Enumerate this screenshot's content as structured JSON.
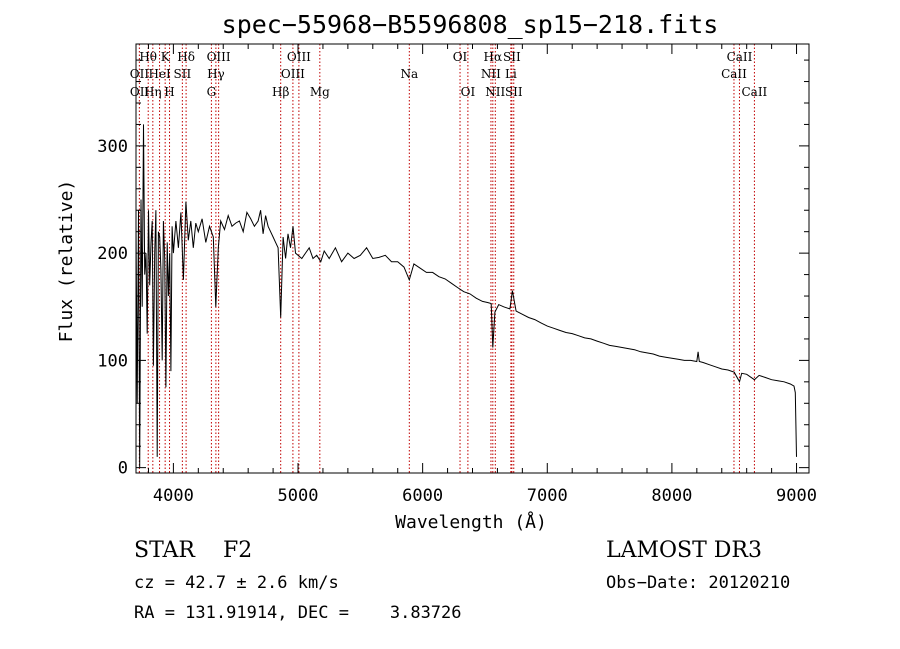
{
  "chart_data": {
    "type": "line",
    "title": "spec−55968−B5596808_sp15−218.fits",
    "xlabel": "Wavelength (Å)",
    "ylabel": "Flux (relative)",
    "xlim": [
      3700,
      9100
    ],
    "ylim": [
      -5,
      395
    ],
    "xticks": [
      4000,
      5000,
      6000,
      7000,
      8000,
      9000
    ],
    "yticks": [
      0,
      100,
      200,
      300
    ],
    "series": [
      {
        "name": "spectrum",
        "x": [
          3700,
          3710,
          3720,
          3730,
          3740,
          3750,
          3760,
          3770,
          3780,
          3790,
          3800,
          3810,
          3820,
          3830,
          3840,
          3850,
          3860,
          3870,
          3880,
          3890,
          3900,
          3910,
          3920,
          3930,
          3940,
          3950,
          3960,
          3970,
          3980,
          3990,
          4000,
          4020,
          4040,
          4060,
          4080,
          4100,
          4120,
          4140,
          4160,
          4180,
          4200,
          4230,
          4260,
          4290,
          4320,
          4340,
          4360,
          4380,
          4410,
          4440,
          4470,
          4500,
          4530,
          4560,
          4590,
          4620,
          4650,
          4680,
          4700,
          4720,
          4740,
          4760,
          4780,
          4800,
          4820,
          4840,
          4861,
          4880,
          4900,
          4920,
          4940,
          4960,
          4980,
          5000,
          5030,
          5060,
          5090,
          5120,
          5150,
          5183,
          5210,
          5250,
          5300,
          5350,
          5400,
          5450,
          5500,
          5550,
          5600,
          5650,
          5700,
          5750,
          5800,
          5850,
          5893,
          5930,
          5980,
          6030,
          6080,
          6130,
          6180,
          6230,
          6280,
          6330,
          6380,
          6430,
          6480,
          6520,
          6550,
          6563,
          6580,
          6610,
          6650,
          6700,
          6720,
          6750,
          6800,
          6850,
          6900,
          6950,
          7000,
          7050,
          7100,
          7150,
          7200,
          7250,
          7300,
          7350,
          7400,
          7450,
          7500,
          7550,
          7600,
          7650,
          7700,
          7750,
          7800,
          7850,
          7900,
          7950,
          8000,
          8050,
          8100,
          8150,
          8200,
          8210,
          8220,
          8250,
          8300,
          8350,
          8400,
          8450,
          8500,
          8542,
          8560,
          8600,
          8662,
          8700,
          8750,
          8800,
          8850,
          8900,
          8950,
          8980,
          8990,
          9000
        ],
        "y": [
          225,
          60,
          240,
          0,
          250,
          150,
          320,
          180,
          200,
          125,
          240,
          170,
          210,
          230,
          95,
          200,
          240,
          10,
          220,
          215,
          185,
          100,
          230,
          195,
          75,
          210,
          160,
          200,
          90,
          225,
          200,
          230,
          205,
          238,
          175,
          248,
          212,
          230,
          205,
          228,
          220,
          232,
          210,
          225,
          215,
          150,
          205,
          230,
          222,
          235,
          225,
          228,
          230,
          220,
          238,
          232,
          225,
          230,
          240,
          218,
          235,
          225,
          220,
          215,
          210,
          205,
          140,
          215,
          195,
          218,
          205,
          225,
          200,
          198,
          195,
          200,
          205,
          195,
          198,
          192,
          202,
          195,
          205,
          192,
          200,
          195,
          198,
          205,
          195,
          196,
          198,
          192,
          192,
          187,
          175,
          190,
          186,
          182,
          182,
          178,
          176,
          172,
          168,
          164,
          162,
          158,
          155,
          154,
          153,
          112,
          145,
          152,
          150,
          148,
          165,
          146,
          143,
          140,
          138,
          135,
          132,
          130,
          128,
          126,
          125,
          123,
          121,
          120,
          118,
          116,
          114,
          113,
          112,
          111,
          110,
          108,
          107,
          106,
          104,
          103,
          102,
          101,
          100,
          100,
          99,
          108,
          99,
          98,
          96,
          94,
          92,
          91,
          89,
          80,
          88,
          87,
          82,
          86,
          84,
          82,
          81,
          80,
          78,
          76,
          70,
          10
        ]
      }
    ],
    "annotations": [
      {
        "label": "Hθ",
        "x": 3798,
        "row": 1
      },
      {
        "label": "OII",
        "x": 3727,
        "row": 2
      },
      {
        "label": "OII",
        "x": 3729,
        "row": 3
      },
      {
        "label": "Hη",
        "x": 3835,
        "row": 3
      },
      {
        "label": "K",
        "x": 3934,
        "row": 1
      },
      {
        "label": "HeI",
        "x": 3889,
        "row": 2
      },
      {
        "label": "H",
        "x": 3969,
        "row": 3
      },
      {
        "label": "Hδ",
        "x": 4102,
        "row": 1
      },
      {
        "label": "SII",
        "x": 4072,
        "row": 2
      },
      {
        "label": "OIII",
        "x": 4363,
        "row": 1
      },
      {
        "label": "Hγ",
        "x": 4341,
        "row": 2
      },
      {
        "label": "G",
        "x": 4305,
        "row": 3
      },
      {
        "label": "Hβ",
        "x": 4861,
        "row": 3
      },
      {
        "label": "OIII",
        "x": 5007,
        "row": 1
      },
      {
        "label": "OIII",
        "x": 4959,
        "row": 2
      },
      {
        "label": "Mg",
        "x": 5175,
        "row": 3
      },
      {
        "label": "Na",
        "x": 5893,
        "row": 2
      },
      {
        "label": "OI",
        "x": 6300,
        "row": 1
      },
      {
        "label": "OI",
        "x": 6363,
        "row": 3
      },
      {
        "label": "Hα",
        "x": 6563,
        "row": 1
      },
      {
        "label": "NII",
        "x": 6548,
        "row": 2
      },
      {
        "label": "NII",
        "x": 6583,
        "row": 3
      },
      {
        "label": "SII",
        "x": 6716,
        "row": 1
      },
      {
        "label": "Li",
        "x": 6708,
        "row": 2
      },
      {
        "label": "SII",
        "x": 6731,
        "row": 3
      },
      {
        "label": "CaII",
        "x": 8542,
        "row": 1
      },
      {
        "label": "CaII",
        "x": 8498,
        "row": 2
      },
      {
        "label": "CaII",
        "x": 8662,
        "row": 3
      }
    ],
    "line_markers": [
      3727,
      3798,
      3835,
      3889,
      3934,
      3969,
      4072,
      4102,
      4305,
      4341,
      4363,
      4861,
      4959,
      5007,
      5175,
      5893,
      6300,
      6363,
      6548,
      6563,
      6583,
      6708,
      6716,
      6731,
      8498,
      8542,
      8662
    ],
    "marker_color": "#c00000"
  },
  "info": {
    "object_class": "STAR",
    "subclass": "F2",
    "survey": "LAMOST DR3",
    "cz": "cz = 42.7 ± 2.6 km/s",
    "obs_date": "Obs−Date: 20120210",
    "radec": "RA = 131.91914, DEC =    3.83726"
  }
}
